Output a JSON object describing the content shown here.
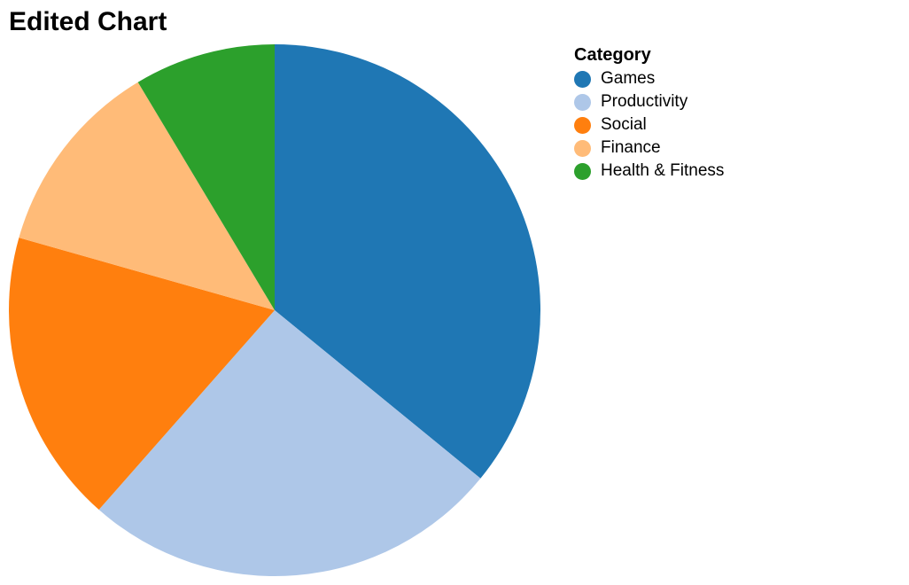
{
  "chart_data": {
    "type": "pie",
    "title": "Edited Chart",
    "legend": {
      "title": "Category",
      "placement": "top-right"
    },
    "slices": [
      {
        "name": "Games",
        "value": 35.9,
        "color": "#1f77b4"
      },
      {
        "name": "Productivity",
        "value": 25.6,
        "color": "#aec7e8"
      },
      {
        "name": "Social",
        "value": 17.9,
        "color": "#ff7f0e"
      },
      {
        "name": "Finance",
        "value": 12.0,
        "color": "#ffbb78"
      },
      {
        "name": "Health & Fitness",
        "value": 8.6,
        "color": "#2ca02c"
      }
    ]
  }
}
